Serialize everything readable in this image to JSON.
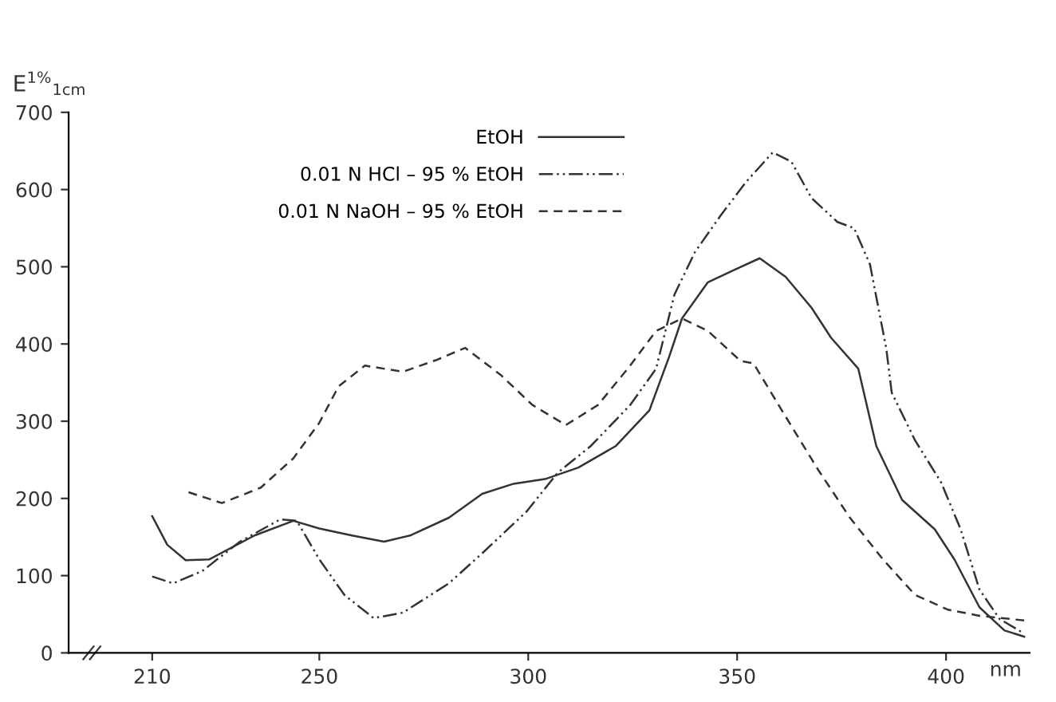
{
  "chart_data": {
    "type": "line",
    "xlabel": "nm",
    "ylabel": "E$^{1%}$$_{1cm}$",
    "xlim": [
      190,
      420
    ],
    "xticks": [
      210,
      250,
      300,
      350,
      400
    ],
    "ylim": [
      0,
      700
    ],
    "yticks": [
      0,
      100,
      200,
      300,
      400,
      500,
      600,
      700
    ],
    "grid": false,
    "legend": "top left",
    "marker": "none",
    "series": [
      {
        "name": "EtOH",
        "color": "#333333",
        "line_style": "solid",
        "x": [
          210,
          213.6,
          218,
          223.6,
          234.5,
          243.8,
          250,
          257.8,
          265.5,
          271.7,
          281,
          289,
          296.5,
          304,
          312,
          321,
          329,
          333.7,
          336.8,
          343,
          349,
          355.4,
          361.6,
          367.8,
          372.5,
          379,
          383.3,
          389.5,
          397.3,
          402,
          408,
          414,
          418.7
        ],
        "values": [
          177,
          140,
          120,
          121,
          152,
          171,
          161,
          152,
          144,
          152,
          175,
          206,
          219,
          225,
          240,
          268,
          314,
          383,
          433,
          480,
          495,
          511,
          487,
          447,
          408,
          368,
          268,
          198,
          160,
          121,
          59,
          29,
          21
        ]
      },
      {
        "name": "0.01 N HCl – 95 % EtOH",
        "color": "#333333",
        "line_style": "dashdot",
        "x": [
          210,
          215,
          222,
          231,
          240.7,
          244.6,
          250,
          256,
          263,
          270,
          281,
          289,
          299.6,
          307,
          315,
          324.4,
          330.6,
          335,
          339.9,
          346,
          352,
          358.5,
          363,
          367.8,
          374,
          378,
          381.8,
          385.7,
          387,
          392.6,
          398.8,
          403.5,
          408,
          412.8,
          418.7
        ],
        "values": [
          99,
          90,
          106,
          144,
          173,
          171,
          121,
          75,
          45,
          52,
          90,
          129,
          183,
          233,
          268,
          321,
          368,
          464,
          519,
          566,
          609,
          648,
          636,
          589,
          558,
          550,
          503,
          394,
          337,
          275,
          221,
          160,
          82,
          44,
          25
        ]
      },
      {
        "name": "0.01 N NaOH – 95 % EtOH",
        "color": "#333333",
        "line_style": "dashed",
        "x": [
          218.7,
          226.7,
          236,
          243.8,
          250,
          254.6,
          260.9,
          270,
          277.9,
          284.9,
          293.4,
          301,
          309,
          316.7,
          324.4,
          330.6,
          336.8,
          343,
          350.8,
          353.9,
          361.6,
          369.4,
          377,
          384.9,
          392.6,
          400.4,
          408,
          418.7
        ],
        "values": [
          208,
          194,
          214,
          252,
          298,
          345,
          372,
          364,
          379,
          395,
          360,
          321,
          295,
          321,
          372,
          417,
          433,
          417,
          378,
          375,
          306,
          237,
          175,
          121,
          75,
          56,
          48,
          42
        ]
      }
    ]
  }
}
